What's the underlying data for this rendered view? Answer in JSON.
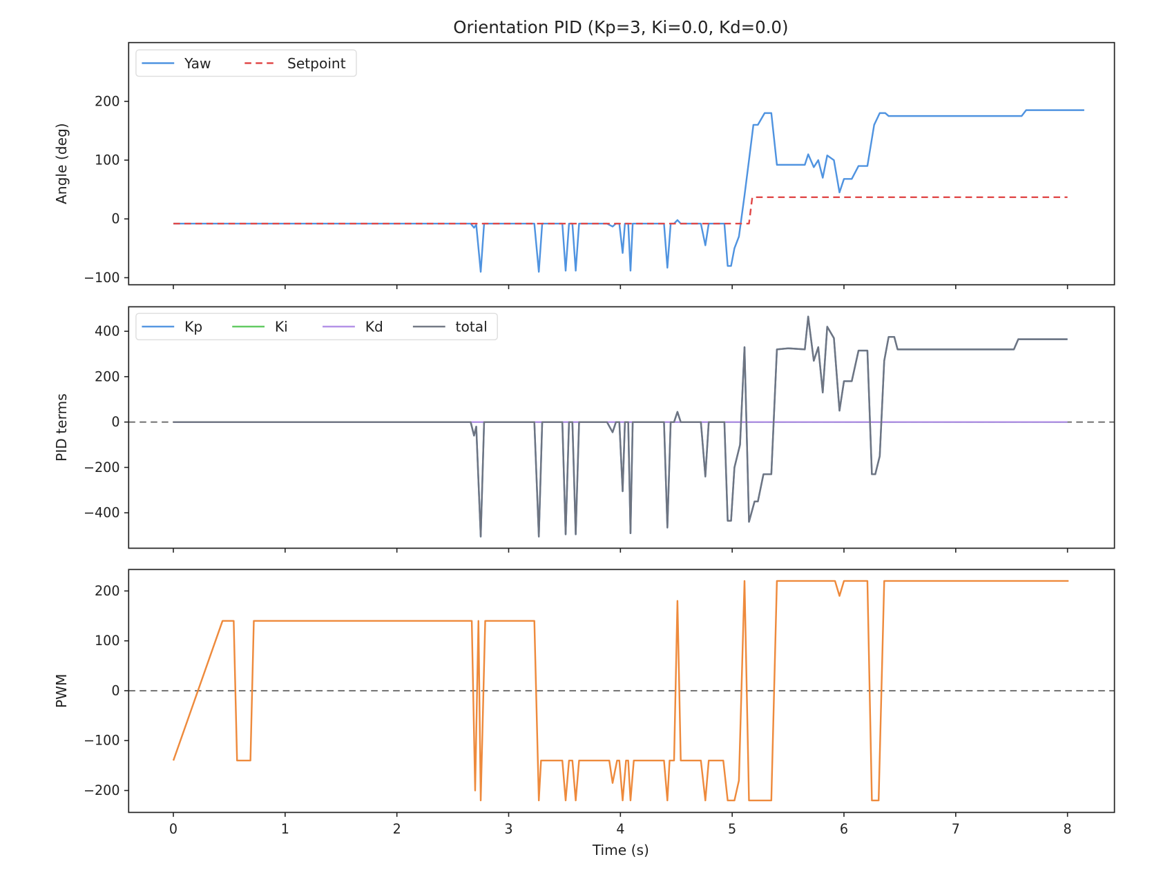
{
  "chart_data": {
    "title": "Orientation PID  (Kp=3, Ki=0.0, Kd=0.0)",
    "xlabel": "Time (s)",
    "x_ticks": [
      "0",
      "1",
      "2",
      "3",
      "4",
      "5",
      "6",
      "7",
      "8"
    ],
    "xlim": [
      -0.4,
      8.42
    ],
    "subplots": [
      {
        "type": "line",
        "ylabel": "Angle (deg)",
        "ylim": [
          -112,
          300
        ],
        "y_ticks": [
          200,
          100,
          0,
          -100
        ],
        "y_tick_labels": [
          "200",
          "100",
          "0",
          "−100"
        ],
        "legend": "top-left",
        "series": [
          {
            "name": "Yaw",
            "color": "#4f93e0",
            "style": "solid",
            "points": [
              [
                0,
                -8
              ],
              [
                2.66,
                -8
              ],
              [
                2.69,
                -15
              ],
              [
                2.71,
                -10
              ],
              [
                2.75,
                -90
              ],
              [
                2.78,
                -8
              ],
              [
                3.23,
                -8
              ],
              [
                3.27,
                -90
              ],
              [
                3.3,
                -8
              ],
              [
                3.48,
                -8
              ],
              [
                3.51,
                -88
              ],
              [
                3.54,
                -8
              ],
              [
                3.57,
                -8
              ],
              [
                3.6,
                -88
              ],
              [
                3.63,
                -8
              ],
              [
                3.88,
                -8
              ],
              [
                3.93,
                -13
              ],
              [
                3.96,
                -8
              ],
              [
                3.99,
                -8
              ],
              [
                4.02,
                -58
              ],
              [
                4.04,
                -8
              ],
              [
                4.07,
                -8
              ],
              [
                4.09,
                -88
              ],
              [
                4.11,
                -8
              ],
              [
                4.39,
                -8
              ],
              [
                4.42,
                -83
              ],
              [
                4.45,
                -8
              ],
              [
                4.48,
                -8
              ],
              [
                4.51,
                -2
              ],
              [
                4.54,
                -8
              ],
              [
                4.72,
                -8
              ],
              [
                4.76,
                -45
              ],
              [
                4.79,
                -8
              ],
              [
                4.93,
                -8
              ],
              [
                4.96,
                -80
              ],
              [
                4.99,
                -80
              ],
              [
                5.02,
                -50
              ],
              [
                5.06,
                -30
              ],
              [
                5.11,
                40
              ],
              [
                5.15,
                100
              ],
              [
                5.19,
                160
              ],
              [
                5.23,
                160
              ],
              [
                5.29,
                180
              ],
              [
                5.35,
                180
              ],
              [
                5.4,
                92
              ],
              [
                5.65,
                92
              ],
              [
                5.68,
                110
              ],
              [
                5.73,
                88
              ],
              [
                5.77,
                100
              ],
              [
                5.81,
                70
              ],
              [
                5.85,
                108
              ],
              [
                5.91,
                100
              ],
              [
                5.96,
                45
              ],
              [
                6.0,
                68
              ],
              [
                6.07,
                68
              ],
              [
                6.13,
                90
              ],
              [
                6.21,
                90
              ],
              [
                6.27,
                160
              ],
              [
                6.32,
                180
              ],
              [
                6.37,
                180
              ],
              [
                6.4,
                175
              ],
              [
                7.59,
                175
              ],
              [
                7.63,
                185
              ],
              [
                8.15,
                185
              ]
            ]
          },
          {
            "name": "Setpoint",
            "color": "#e04848",
            "style": "dashed",
            "points": [
              [
                0,
                -8
              ],
              [
                5.15,
                -8
              ],
              [
                5.18,
                37
              ],
              [
                8.0,
                37
              ]
            ]
          }
        ]
      },
      {
        "type": "line",
        "ylabel": "PID terms",
        "ylim": [
          -556,
          508
        ],
        "y_ticks": [
          400,
          200,
          0,
          -200,
          -400
        ],
        "y_tick_labels": [
          "400",
          "200",
          "0",
          "−200",
          "−400"
        ],
        "legend": "top-left",
        "zero_line": true,
        "series": [
          {
            "name": "Kp",
            "color": "#4f93e0",
            "style": "solid",
            "same_as": "total"
          },
          {
            "name": "Ki",
            "color": "#5cc85c",
            "style": "solid",
            "points": [
              [
                0,
                0
              ],
              [
                8.0,
                0
              ]
            ]
          },
          {
            "name": "Kd",
            "color": "#b08ee6",
            "style": "solid",
            "points": [
              [
                0,
                0
              ],
              [
                8.0,
                0
              ]
            ]
          },
          {
            "name": "total",
            "color": "#6e7480",
            "style": "solid",
            "points": [
              [
                0,
                0
              ],
              [
                2.66,
                0
              ],
              [
                2.69,
                -60
              ],
              [
                2.71,
                -20
              ],
              [
                2.75,
                -505
              ],
              [
                2.78,
                0
              ],
              [
                3.23,
                0
              ],
              [
                3.27,
                -505
              ],
              [
                3.3,
                0
              ],
              [
                3.48,
                0
              ],
              [
                3.51,
                -495
              ],
              [
                3.54,
                0
              ],
              [
                3.57,
                0
              ],
              [
                3.6,
                -495
              ],
              [
                3.63,
                0
              ],
              [
                3.88,
                0
              ],
              [
                3.93,
                -45
              ],
              [
                3.96,
                0
              ],
              [
                3.99,
                0
              ],
              [
                4.02,
                -305
              ],
              [
                4.04,
                0
              ],
              [
                4.07,
                0
              ],
              [
                4.09,
                -490
              ],
              [
                4.11,
                0
              ],
              [
                4.39,
                0
              ],
              [
                4.42,
                -465
              ],
              [
                4.45,
                0
              ],
              [
                4.48,
                0
              ],
              [
                4.51,
                45
              ],
              [
                4.54,
                0
              ],
              [
                4.72,
                0
              ],
              [
                4.76,
                -240
              ],
              [
                4.79,
                0
              ],
              [
                4.93,
                0
              ],
              [
                4.96,
                -435
              ],
              [
                4.99,
                -435
              ],
              [
                5.02,
                -200
              ],
              [
                5.07,
                -100
              ],
              [
                5.11,
                330
              ],
              [
                5.15,
                -440
              ],
              [
                5.2,
                -350
              ],
              [
                5.23,
                -350
              ],
              [
                5.28,
                -230
              ],
              [
                5.35,
                -230
              ],
              [
                5.4,
                320
              ],
              [
                5.5,
                325
              ],
              [
                5.65,
                320
              ],
              [
                5.68,
                465
              ],
              [
                5.73,
                270
              ],
              [
                5.77,
                330
              ],
              [
                5.81,
                130
              ],
              [
                5.85,
                420
              ],
              [
                5.91,
                370
              ],
              [
                5.96,
                50
              ],
              [
                6.0,
                180
              ],
              [
                6.07,
                180
              ],
              [
                6.13,
                315
              ],
              [
                6.21,
                315
              ],
              [
                6.25,
                -230
              ],
              [
                6.28,
                -230
              ],
              [
                6.32,
                -150
              ],
              [
                6.36,
                270
              ],
              [
                6.4,
                375
              ],
              [
                6.45,
                375
              ],
              [
                6.48,
                320
              ],
              [
                7.52,
                320
              ],
              [
                7.56,
                365
              ],
              [
                8.0,
                365
              ]
            ]
          }
        ]
      },
      {
        "type": "line",
        "ylabel": "PWM",
        "ylim": [
          -244,
          243
        ],
        "y_ticks": [
          200,
          100,
          0,
          -100,
          -200
        ],
        "y_tick_labels": [
          "200",
          "100",
          "0",
          "−100",
          "−200"
        ],
        "zero_line": true,
        "series": [
          {
            "color": "#ee8a3c",
            "style": "solid",
            "points": [
              [
                0,
                -140
              ],
              [
                0.44,
                140
              ],
              [
                0.54,
                140
              ],
              [
                0.57,
                -140
              ],
              [
                0.69,
                -140
              ],
              [
                0.72,
                140
              ],
              [
                2.67,
                140
              ],
              [
                2.7,
                -200
              ],
              [
                2.73,
                140
              ],
              [
                2.75,
                -220
              ],
              [
                2.79,
                140
              ],
              [
                3.23,
                140
              ],
              [
                3.27,
                -220
              ],
              [
                3.29,
                -140
              ],
              [
                3.48,
                -140
              ],
              [
                3.51,
                -220
              ],
              [
                3.54,
                -140
              ],
              [
                3.57,
                -140
              ],
              [
                3.6,
                -220
              ],
              [
                3.63,
                -140
              ],
              [
                3.9,
                -140
              ],
              [
                3.93,
                -185
              ],
              [
                3.97,
                -140
              ],
              [
                3.99,
                -140
              ],
              [
                4.02,
                -220
              ],
              [
                4.05,
                -140
              ],
              [
                4.07,
                -140
              ],
              [
                4.09,
                -220
              ],
              [
                4.12,
                -140
              ],
              [
                4.39,
                -140
              ],
              [
                4.42,
                -220
              ],
              [
                4.44,
                -140
              ],
              [
                4.48,
                -140
              ],
              [
                4.51,
                180
              ],
              [
                4.54,
                -140
              ],
              [
                4.72,
                -140
              ],
              [
                4.76,
                -220
              ],
              [
                4.79,
                -140
              ],
              [
                4.92,
                -140
              ],
              [
                4.96,
                -220
              ],
              [
                5.02,
                -220
              ],
              [
                5.06,
                -180
              ],
              [
                5.11,
                220
              ],
              [
                5.15,
                -220
              ],
              [
                5.35,
                -220
              ],
              [
                5.4,
                220
              ],
              [
                5.92,
                220
              ],
              [
                5.96,
                190
              ],
              [
                6.0,
                220
              ],
              [
                6.21,
                220
              ],
              [
                6.25,
                -220
              ],
              [
                6.31,
                -220
              ],
              [
                6.36,
                220
              ],
              [
                8.01,
                220
              ]
            ]
          }
        ]
      }
    ]
  }
}
